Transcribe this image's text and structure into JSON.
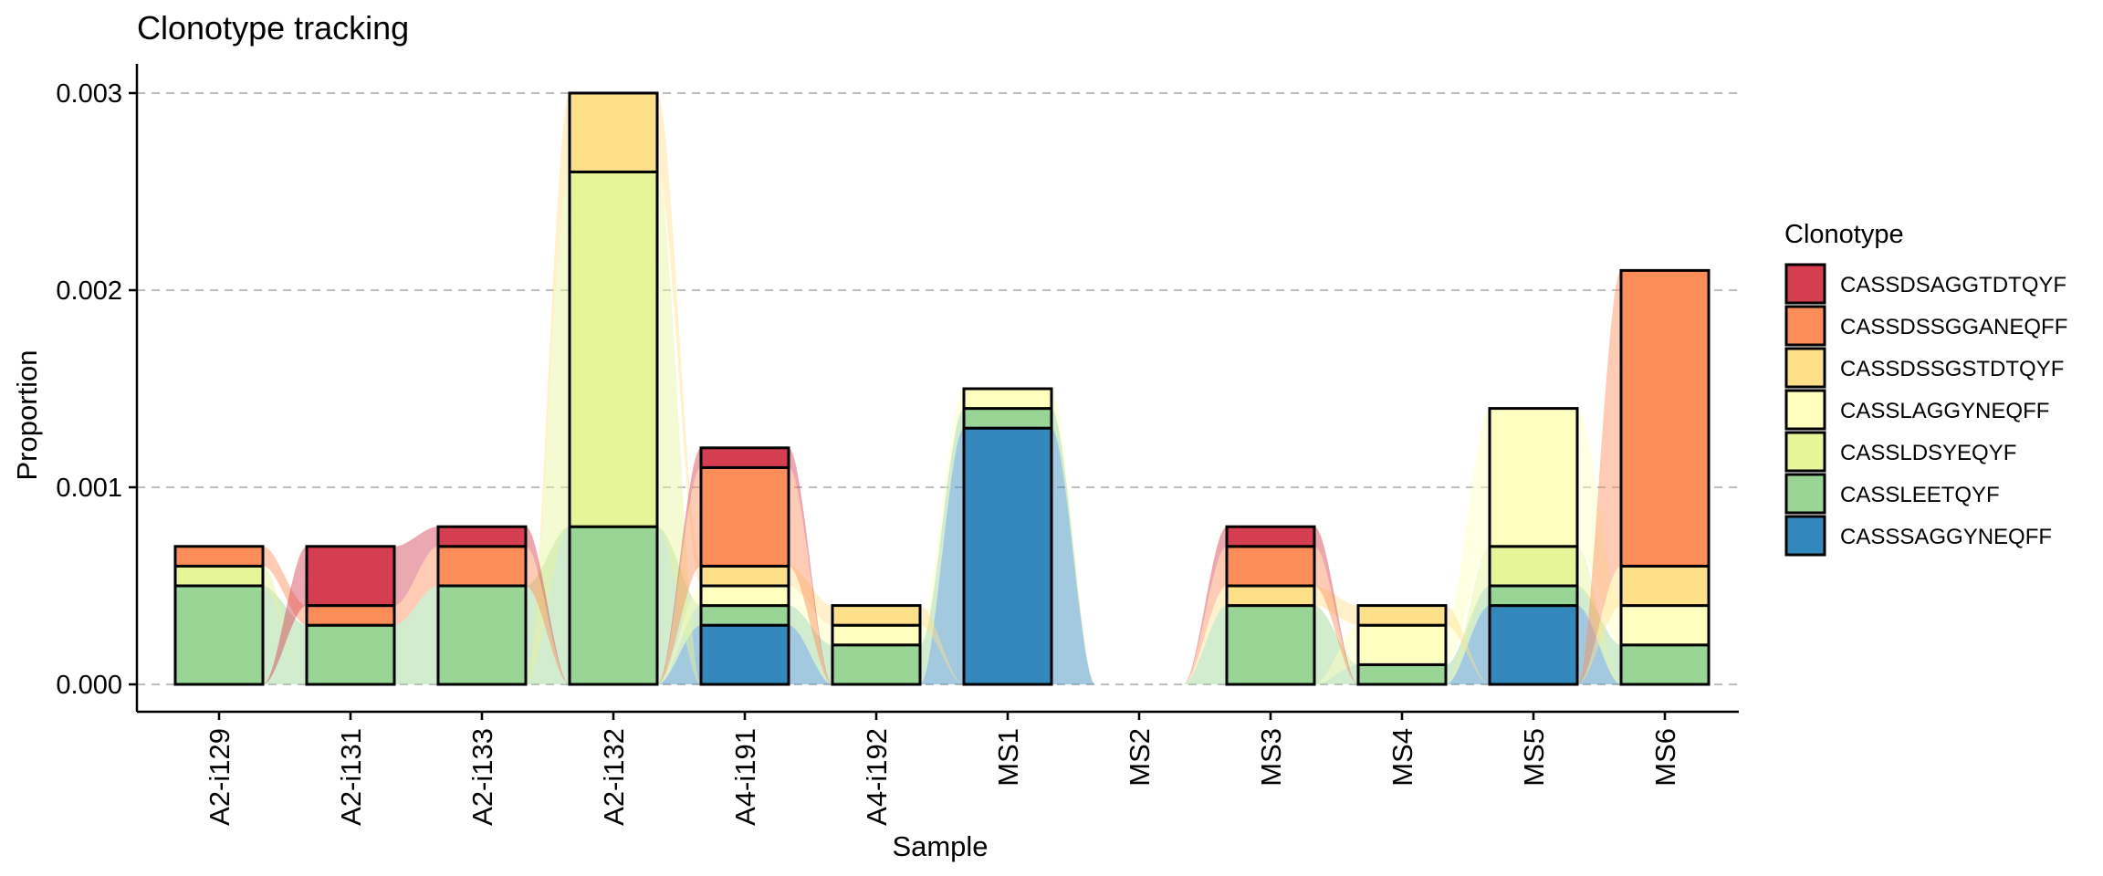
{
  "chart_data": {
    "type": "bar",
    "subtype": "stacked-bar-with-alluvial-flows",
    "title": "Clonotype tracking",
    "xlabel": "Sample",
    "ylabel": "Proportion",
    "ylim": [
      0,
      0.00315
    ],
    "yticks": [
      0,
      0.001,
      0.002,
      0.003
    ],
    "ytick_labels": [
      "0.000",
      "0.001",
      "0.002",
      "0.003"
    ],
    "grid": "horizontal-dashed",
    "legend_title": "Clonotype",
    "legend_position": "right",
    "categories": [
      "A2-i129",
      "A2-i131",
      "A2-i133",
      "A2-i132",
      "A4-i191",
      "A4-i192",
      "MS1",
      "MS2",
      "MS3",
      "MS4",
      "MS5",
      "MS6"
    ],
    "series": [
      {
        "name": "CASSSAGGYNEQFF",
        "color": "#3288bd",
        "values": [
          0,
          0,
          0,
          0,
          0.0003,
          0,
          0.0013,
          0,
          0,
          0,
          0.0004,
          0
        ]
      },
      {
        "name": "CASSLEETQYF",
        "color": "#99d594",
        "values": [
          0.0005,
          0.0003,
          0.0005,
          0.0008,
          0.0001,
          0.0002,
          0.0001,
          0,
          0.0004,
          0.0001,
          0.0001,
          0.0002
        ]
      },
      {
        "name": "CASSLDSYEQYF",
        "color": "#e6f598",
        "values": [
          0.0001,
          0,
          0,
          0.0018,
          0,
          0,
          0,
          0,
          0,
          0,
          0.0002,
          0
        ]
      },
      {
        "name": "CASSLAGGYNEQFF",
        "color": "#ffffbf",
        "values": [
          0,
          0,
          0,
          0,
          0.0001,
          0.0001,
          0.0001,
          0,
          0,
          0.0002,
          0.0007,
          0.0002
        ]
      },
      {
        "name": "CASSDSSGSTDTQYF",
        "color": "#fee08b",
        "values": [
          0,
          0,
          0,
          0.0004,
          0.0001,
          0.0001,
          0,
          0,
          0.0001,
          0.0001,
          0,
          0.0002
        ]
      },
      {
        "name": "CASSDSSGGANEQFF",
        "color": "#fc8d59",
        "values": [
          0.0001,
          0.0001,
          0.0002,
          0,
          0.0005,
          0,
          0,
          0,
          0.0002,
          0,
          0,
          0.0015
        ]
      },
      {
        "name": "CASSDSAGGTDTQYF",
        "color": "#d53e4f",
        "values": [
          0,
          0.0003,
          0.0001,
          0,
          0.0001,
          0,
          0,
          0,
          0.0001,
          0,
          0,
          0
        ]
      }
    ]
  }
}
